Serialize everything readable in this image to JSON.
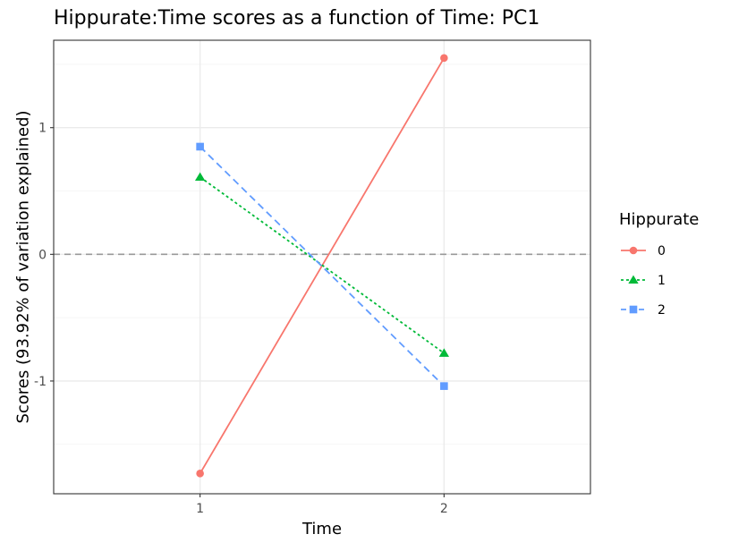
{
  "chart_data": {
    "type": "line",
    "title": "Hippurate:Time scores as a function of Time: PC1",
    "xlabel": "Time",
    "ylabel": "Scores (93.92% of variation explained)",
    "x": [
      "1",
      "2"
    ],
    "xlim": [
      0.4,
      2.6
    ],
    "ylim": [
      -1.89,
      1.69
    ],
    "y_ticks": [
      -1,
      0,
      1
    ],
    "y_tick_labels": [
      "-1",
      "0",
      "1"
    ],
    "grid": true,
    "reference_line": {
      "y": 0,
      "style": "dashed",
      "color": "#999999"
    },
    "legend": {
      "title": "Hippurate",
      "position": "right"
    },
    "series": [
      {
        "name": "0",
        "values": [
          -1.73,
          1.55
        ],
        "color": "#F8766D",
        "marker": "circle",
        "line": "solid"
      },
      {
        "name": "1",
        "values": [
          0.61,
          -0.78
        ],
        "color": "#00BA38",
        "marker": "triangle",
        "line": "dotted"
      },
      {
        "name": "2",
        "values": [
          0.85,
          -1.04
        ],
        "color": "#619CFF",
        "marker": "square",
        "line": "dashed"
      }
    ]
  }
}
